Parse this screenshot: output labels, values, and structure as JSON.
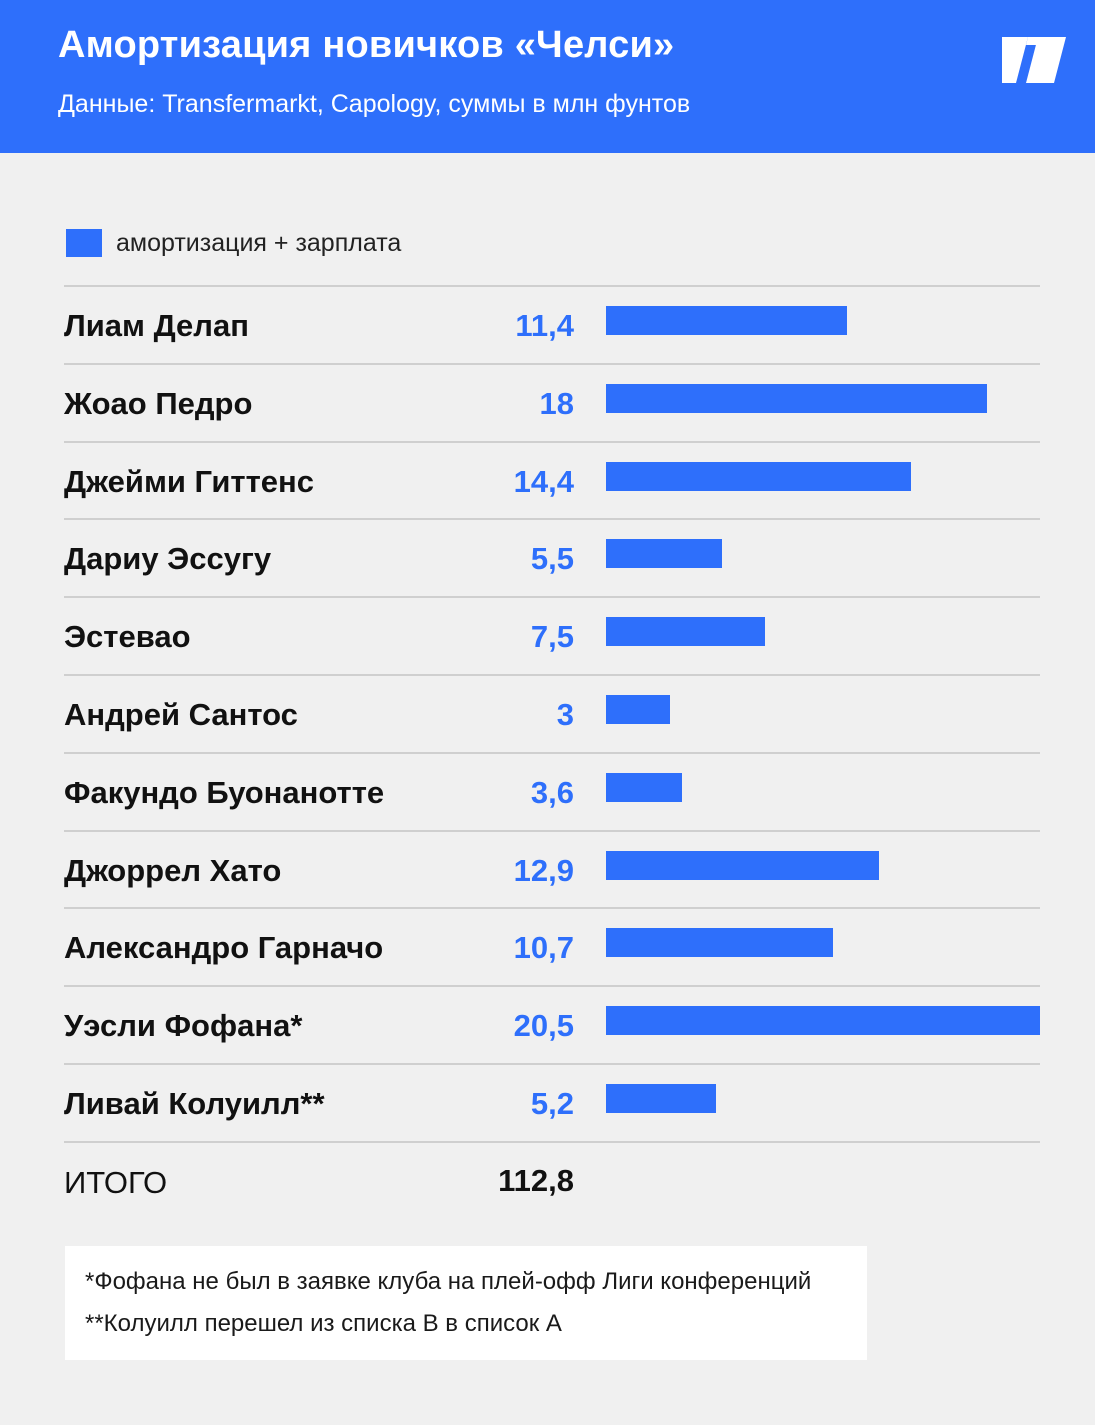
{
  "header": {
    "title": "Амортизация новичков «Челси»",
    "subtitle": "Данные: Transfermarkt, Capology, суммы в млн фунтов",
    "logo_icon": "publisher-logo-icon"
  },
  "colors": {
    "accent": "#2e6ffb",
    "value_text": "#2e6ffb",
    "background": "#f0f0f0",
    "rule": "#cfcfcf"
  },
  "legend": {
    "label": "амортизация + зарплата"
  },
  "chart_data": {
    "type": "bar",
    "orientation": "horizontal",
    "categories": [
      "Лиам Делап",
      "Жоао Педро",
      "Джейми Гиттенс",
      "Дариу Эссугу",
      "Эстевао",
      "Андрей Сантос",
      "Факундо Буонанотте",
      "Джоррел Хато",
      "Александро Гарначо",
      "Уэсли Фофана*",
      "Ливай Колуилл**"
    ],
    "value_labels": [
      "11,4",
      "18",
      "14,4",
      "5,5",
      "7,5",
      "3",
      "3,6",
      "12,9",
      "10,7",
      "20,5",
      "5,2"
    ],
    "series": [
      {
        "name": "амортизация + зарплата",
        "values": [
          11.4,
          18,
          14.4,
          5.5,
          7.5,
          3,
          3.6,
          12.9,
          10.7,
          20.5,
          5.2
        ]
      }
    ],
    "xlim": [
      0,
      20.5
    ],
    "grid": false,
    "legend_position": "top-left"
  },
  "total": {
    "label": "ИТОГО",
    "value": "112,8"
  },
  "footnotes": [
    "*Фофана не был в заявке клуба на плей-офф Лиги конференций",
    "**Колуилл перешел из списка B в список A"
  ]
}
